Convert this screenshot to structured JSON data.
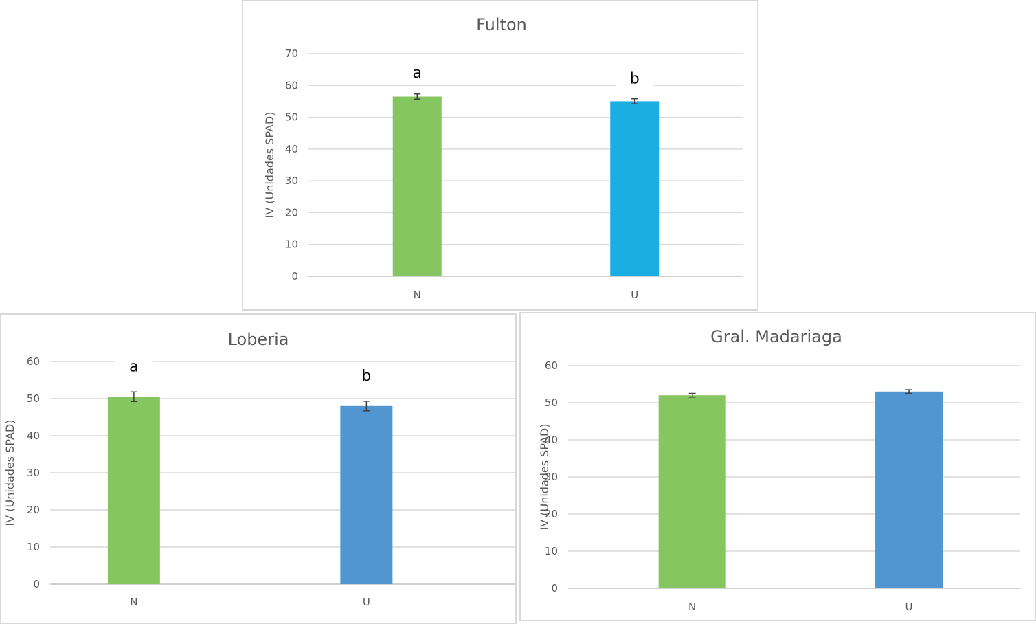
{
  "chart_data": [
    {
      "type": "bar",
      "title": "Fulton",
      "ylabel": "IV (Unidades SPAD)",
      "xlabel": "",
      "categories": [
        "N",
        "U"
      ],
      "values": [
        56.5,
        55.0
      ],
      "errors": [
        0.8,
        0.8
      ],
      "significance": [
        "a",
        "b"
      ],
      "colors": [
        "#85c660",
        "#1aaee3"
      ],
      "ylim": [
        0,
        70
      ],
      "yticks": [
        0,
        10,
        20,
        30,
        40,
        50,
        60,
        70
      ],
      "grid": true
    },
    {
      "type": "bar",
      "title": "Loberia",
      "ylabel": "IV (Unidades SPAD)",
      "xlabel": "",
      "categories": [
        "N",
        "U"
      ],
      "values": [
        50.5,
        48.0
      ],
      "errors": [
        1.3,
        1.3
      ],
      "significance": [
        "a",
        "b"
      ],
      "colors": [
        "#85c660",
        "#5196d1"
      ],
      "ylim": [
        0,
        60
      ],
      "yticks": [
        0,
        10,
        20,
        30,
        40,
        50,
        60
      ],
      "grid": true
    },
    {
      "type": "bar",
      "title": "Gral. Madariaga",
      "ylabel": "IV (Unidades SPAD)",
      "xlabel": "",
      "categories": [
        "N",
        "U"
      ],
      "values": [
        52.0,
        53.0
      ],
      "errors": [
        0.5,
        0.5
      ],
      "significance": [
        "",
        ""
      ],
      "colors": [
        "#85c660",
        "#5196d1"
      ],
      "ylim": [
        0,
        60
      ],
      "yticks": [
        0,
        10,
        20,
        30,
        40,
        50,
        60
      ],
      "grid": true
    }
  ]
}
